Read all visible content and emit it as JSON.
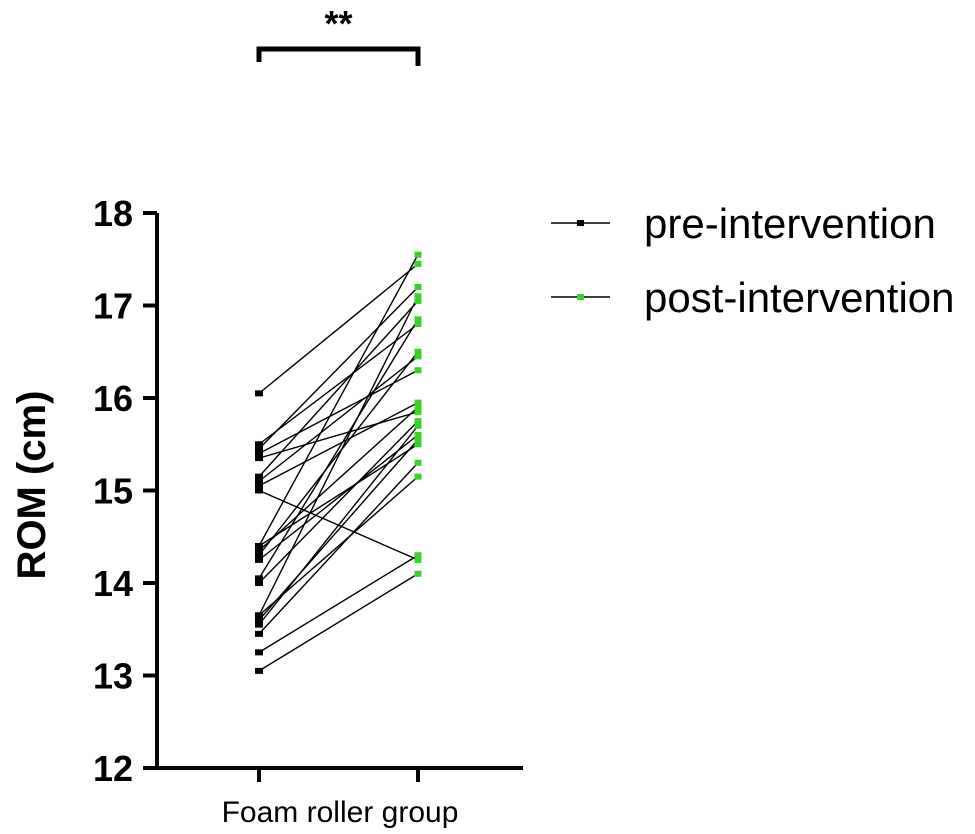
{
  "chart_data": {
    "type": "line",
    "title": "",
    "xlabel": "",
    "ylabel": "ROM (cm)",
    "category_label": "Foam roller group",
    "x": [
      "pre-intervention",
      "post-intervention"
    ],
    "ylim": [
      12,
      18
    ],
    "yticks": [
      "12",
      "13",
      "14",
      "15",
      "16",
      "17",
      "18"
    ],
    "grid": false,
    "legend_position": "top-right",
    "significance": "**",
    "series": [
      {
        "name": "pre-intervention",
        "color": "#000000"
      },
      {
        "name": "post-intervention",
        "color": "#39d12a"
      }
    ],
    "pairs": [
      [
        16.05,
        17.45
      ],
      [
        15.5,
        16.8
      ],
      [
        15.45,
        17.2
      ],
      [
        15.4,
        16.3
      ],
      [
        15.15,
        17.05
      ],
      [
        15.1,
        16.45
      ],
      [
        15.05,
        15.95
      ],
      [
        15.0,
        14.25
      ],
      [
        14.4,
        17.55
      ],
      [
        14.35,
        15.9
      ],
      [
        14.3,
        16.5
      ],
      [
        14.05,
        16.85
      ],
      [
        14.0,
        15.75
      ],
      [
        13.65,
        17.1
      ],
      [
        13.6,
        15.55
      ],
      [
        13.55,
        15.7
      ],
      [
        13.45,
        15.3
      ],
      [
        13.25,
        14.3
      ],
      [
        13.05,
        14.1
      ],
      [
        14.25,
        15.6
      ],
      [
        15.35,
        15.85
      ],
      [
        13.65,
        15.15
      ],
      [
        14.4,
        15.5
      ]
    ]
  }
}
